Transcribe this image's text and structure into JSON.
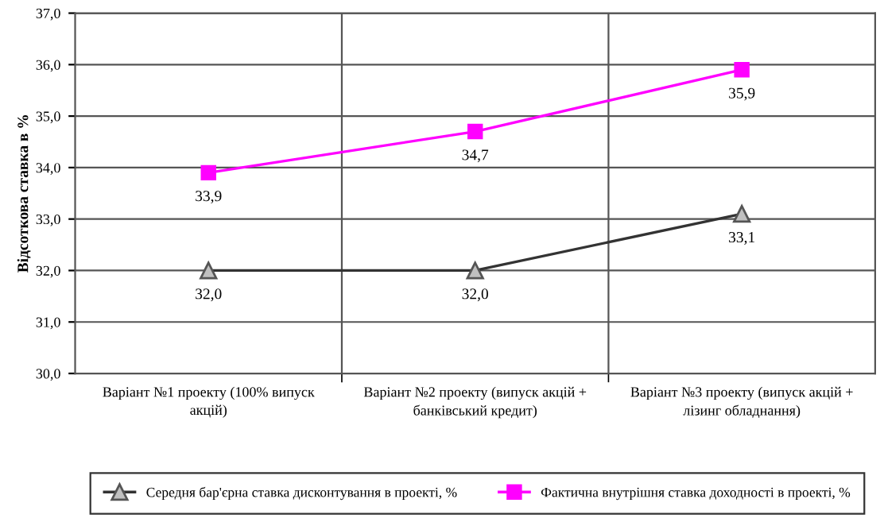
{
  "chart_data": {
    "type": "line",
    "ylabel": "Відсоткова ставка в %",
    "categories": [
      "Варіант №1 проекту (100% випуск акцій)",
      "Варіант №2 проекту (випуск акцій + банківський кредит)",
      "Варіант №3 проекту (випуск акцій + лізинг обладнання)"
    ],
    "series": [
      {
        "name": "Середня бар'єрна ставка дисконтування в проекті, %",
        "color": "#333333",
        "marker": "triangle",
        "values": [
          32.0,
          32.0,
          33.1
        ],
        "value_labels": [
          "32,0",
          "32,0",
          "33,1"
        ]
      },
      {
        "name": "Фактична внутрішня ставка доходності в проекті, %",
        "color": "#ff00ff",
        "marker": "square",
        "values": [
          33.9,
          34.7,
          35.9
        ],
        "value_labels": [
          "33,9",
          "34,7",
          "35,9"
        ]
      }
    ],
    "ylim": [
      30,
      37
    ],
    "yticks": [
      {
        "value": 30,
        "label": "30,0"
      },
      {
        "value": 31,
        "label": "31,0"
      },
      {
        "value": 32,
        "label": "32,0"
      },
      {
        "value": 33,
        "label": "33,0"
      },
      {
        "value": 34,
        "label": "34,0"
      },
      {
        "value": 35,
        "label": "35,0"
      },
      {
        "value": 36,
        "label": "36,0"
      },
      {
        "value": 37,
        "label": "37,0"
      }
    ],
    "grid": true,
    "legend": "bottom"
  }
}
